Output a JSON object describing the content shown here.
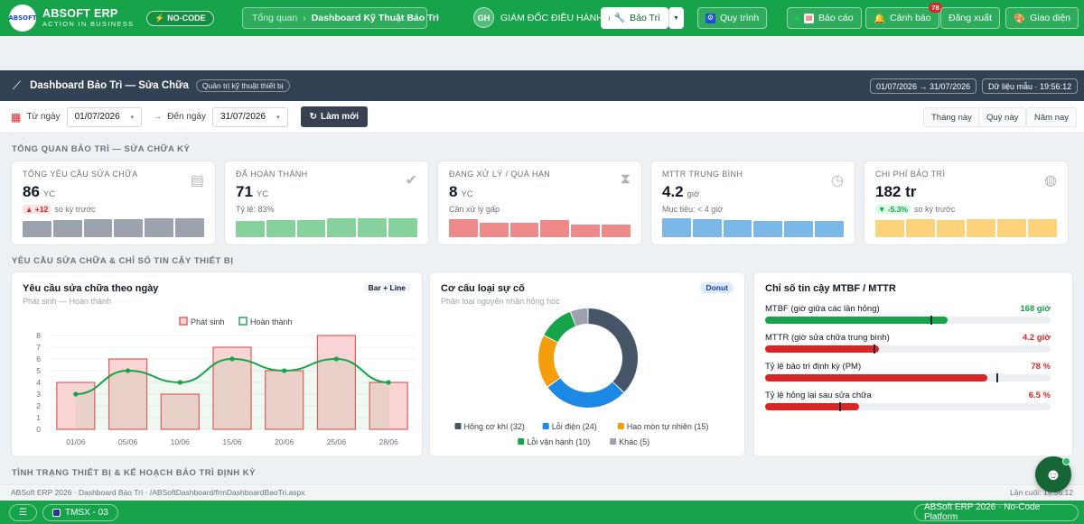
{
  "topbar": {
    "brand": "ABSOFT ERP",
    "tagline": "ACTION IN BUSINESS",
    "logo_text": "ABSOFT",
    "nocode": "NO-CODE",
    "breadcrumb": {
      "root": "Tổng quan",
      "separator": "›",
      "current": "Dashboard Kỹ Thuật Bảo Trì"
    },
    "user": {
      "initials": "GH",
      "role": "GIÁM ĐỐC ĐIỀU HÀNH"
    },
    "module": "Bảo Trì",
    "buttons": {
      "process": "Quy trình",
      "report": "Báo cáo",
      "alert": "Cảnh báo",
      "alert_count": "78",
      "logout": "Đăng xuất",
      "theme": "Giao diện"
    }
  },
  "header": {
    "title": "Dashboard Bảo Trì — Sửa Chữa",
    "tag": "Quản trị kỹ thuật thiết bị",
    "range": "01/07/2026 → 31/07/2026",
    "sample": "Dữ liệu mẫu · 19:56:12"
  },
  "filter": {
    "from_label": "Từ ngày",
    "from_value": "01/07/2026",
    "arrow": "→",
    "to_label": "Đến ngày",
    "to_value": "31/07/2026",
    "refresh": "Làm mới",
    "quick": [
      "Tháng này",
      "Quý này",
      "Năm nay"
    ]
  },
  "sections": {
    "overview": "TỔNG QUAN BẢO TRÌ — SỬA CHỮA KỲ",
    "requests": "YÊU CẦU SỬA CHỮA & CHỈ SỐ TIN CẬY THIẾT BỊ",
    "equipment": "TÌNH TRẠNG THIẾT BỊ & KẾ HOẠCH BẢO TRÌ ĐỊNH KỲ"
  },
  "kpis": [
    {
      "title": "TỔNG YÊU CẦU SỬA CHỮA",
      "value": "86",
      "unit": "YC",
      "change": "▲ +12",
      "sub": "so kỳ trước",
      "color": "#9ca3af",
      "icon": "clipboard-icon",
      "bars": [
        0.8,
        0.85,
        0.9,
        0.9,
        0.95,
        0.95
      ]
    },
    {
      "title": "ĐÃ HOÀN THÀNH",
      "value": "71",
      "unit": "YC",
      "change": "",
      "sub": "Tỷ lệ: 83%",
      "color": "#86d19c",
      "icon": "check-icon",
      "bars": [
        0.8,
        0.85,
        0.85,
        0.95,
        0.95,
        0.95
      ]
    },
    {
      "title": "ĐANG XỬ LÝ / QUÁ HẠN",
      "value": "8",
      "unit": "YC",
      "change": "",
      "sub": "Cần xử lý gấp",
      "color": "#ef8a8a",
      "icon": "hourglass-icon",
      "bars": [
        0.9,
        0.75,
        0.75,
        0.85,
        0.65,
        0.65
      ]
    },
    {
      "title": "MTTR TRUNG BÌNH",
      "value": "4.2",
      "unit": "giờ",
      "change": "",
      "sub": "Mục tiêu: < 4 giờ",
      "color": "#7ab8e8",
      "icon": "clock-icon",
      "bars": [
        0.95,
        0.9,
        0.85,
        0.8,
        0.8,
        0.8
      ]
    },
    {
      "title": "CHI PHÍ BẢO TRÌ",
      "value": "182 tr",
      "unit": "tr",
      "change": "▼ -5.3%",
      "sub": "so kỳ trước",
      "color": "#fcd27a",
      "icon": "money-bag-icon",
      "bars": [
        0.85,
        0.9,
        0.85,
        0.9,
        0.9,
        0.9
      ]
    }
  ],
  "daily_chart": {
    "title": "Yêu cầu sửa chữa theo ngày",
    "subtitle": "Phát sinh — Hoàn thành",
    "badge": "Bar + Line"
  },
  "donut_chart": {
    "title": "Cơ cấu loại sự cố",
    "subtitle": "Phân loại nguyên nhân hỏng hóc",
    "badge": "Donut"
  },
  "reliability": {
    "title": "Chỉ số tin cậy MTBF / MTTR",
    "metrics": [
      {
        "label": "MTBF (giờ giữa các lần hỏng)",
        "value": "168 giờ",
        "fill": 0.64,
        "target": 0.58,
        "color": "#16a34a"
      },
      {
        "label": "MTTR (giờ sửa chữa trung bình)",
        "value": "4.2 giờ",
        "fill": 0.4,
        "target": 0.38,
        "color": "#dc2626"
      },
      {
        "label": "Tỷ lệ bảo trì định kỳ (PM)",
        "value": "78 %",
        "fill": 0.78,
        "target": 0.81,
        "color": "#dc2626"
      },
      {
        "label": "Tỷ lệ hỏng lại sau sửa chữa",
        "value": "6.5 %",
        "fill": 0.33,
        "target": 0.26,
        "color": "#dc2626"
      }
    ]
  },
  "footer": {
    "path": "ABSoft ERP 2026 · Dashboard Bảo Trì · /ABSoftDashboard/frmDashboardBaoTri.aspx",
    "last": "Lần cuối: 19:56:12"
  },
  "bottombar": {
    "site": "TMSX - 03",
    "product": "ABSoft ERP 2026 · No-Code Platform"
  },
  "chart_data": [
    {
      "type": "bar",
      "title": "Yêu cầu sửa chữa theo ngày",
      "categories": [
        "01/06",
        "05/06",
        "10/06",
        "15/06",
        "20/06",
        "25/06",
        "28/06"
      ],
      "series": [
        {
          "name": "Phát sinh",
          "type": "bar",
          "values": [
            4,
            6,
            3,
            7,
            5,
            8,
            4
          ],
          "color": "#e05c5c"
        },
        {
          "name": "Hoàn thành",
          "type": "line",
          "values": [
            3,
            5,
            4,
            6,
            5,
            6,
            4
          ],
          "color": "#16a34a"
        }
      ],
      "ylim": [
        0,
        8
      ],
      "yticks": [
        0,
        1,
        2,
        3,
        4,
        5,
        6,
        7,
        8
      ],
      "grid": true,
      "legend": "top-center"
    },
    {
      "type": "pie",
      "title": "Cơ cấu loại sự cố",
      "slices": [
        {
          "label": "Hỏng cơ khí (32)",
          "value": 32,
          "color": "#475569"
        },
        {
          "label": "Lỗi điện (24)",
          "value": 24,
          "color": "#1e88e5"
        },
        {
          "label": "Hao mòn tự nhiên (15)",
          "value": 15,
          "color": "#f59e0b"
        },
        {
          "label": "Lỗi vận hành (10)",
          "value": 10,
          "color": "#16a34a"
        },
        {
          "label": "Khác (5)",
          "value": 5,
          "color": "#9ca3af"
        }
      ],
      "legend": "bottom"
    }
  ]
}
